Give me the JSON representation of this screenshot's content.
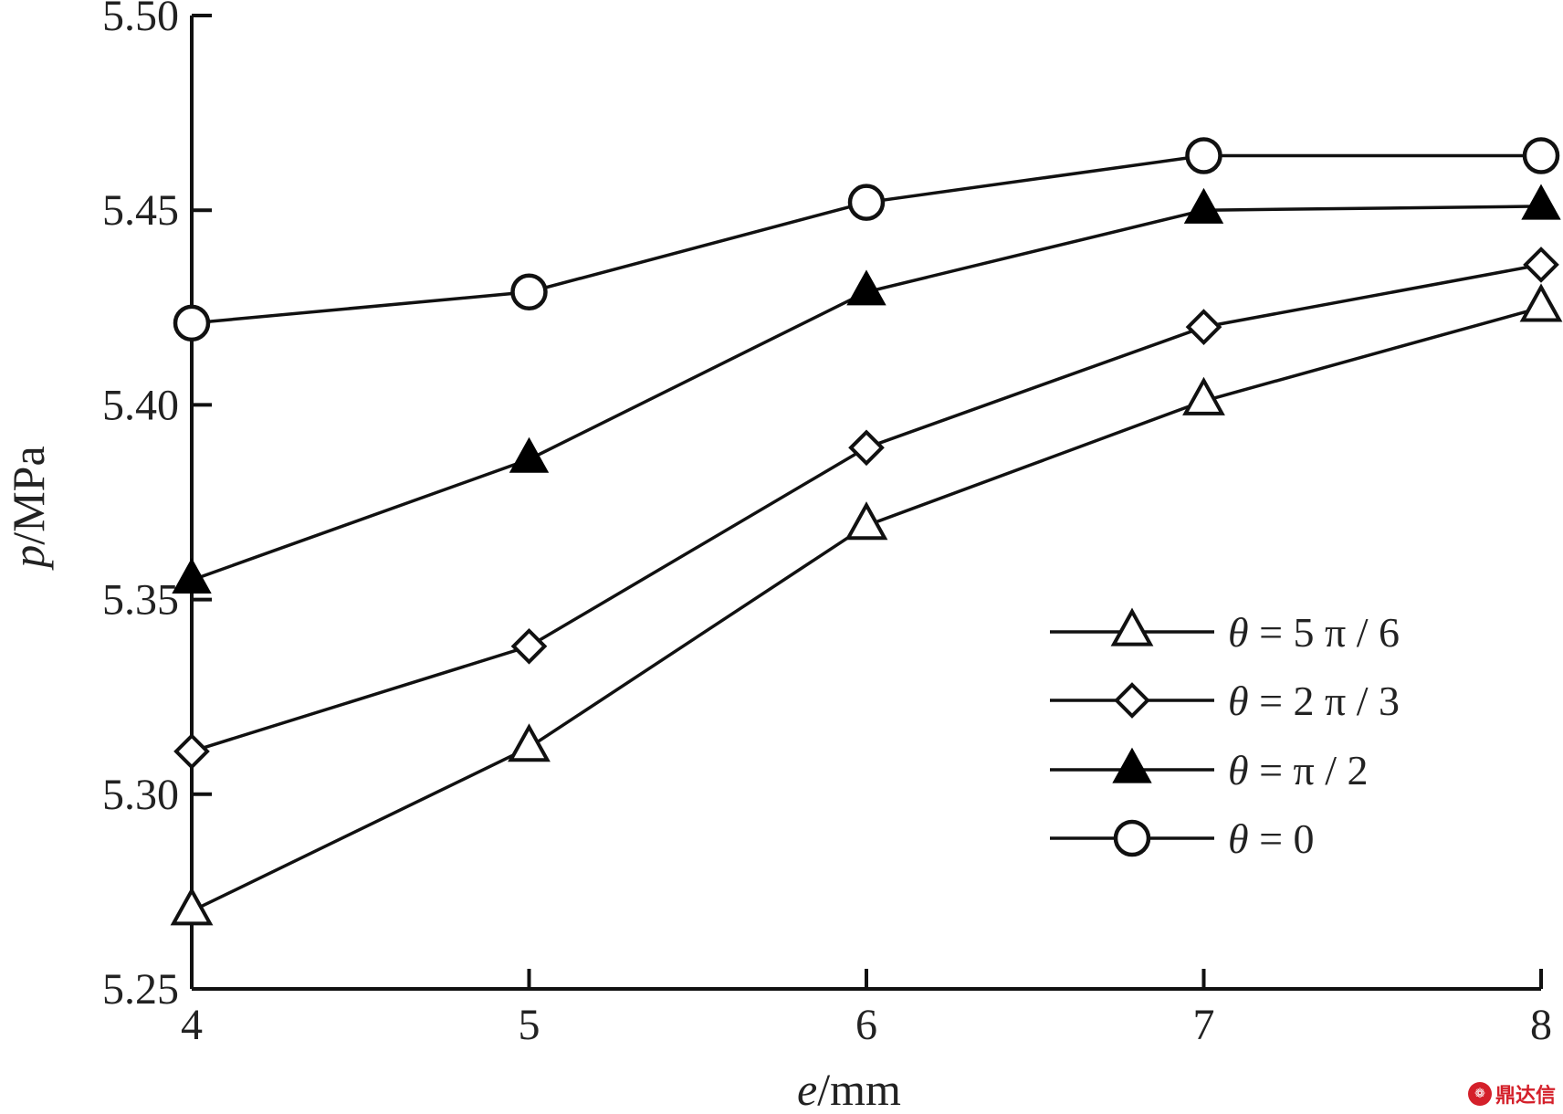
{
  "chart_data": {
    "type": "line",
    "title": "",
    "xlabel": {
      "var": "e",
      "unit": "mm"
    },
    "ylabel": {
      "var": "p",
      "unit": "MPa"
    },
    "x": [
      4,
      5,
      6,
      7,
      8
    ],
    "xlim": [
      4,
      8
    ],
    "ylim": [
      5.25,
      5.5
    ],
    "x_ticks": [
      "4",
      "5",
      "6",
      "7",
      "8"
    ],
    "y_ticks": [
      "5.25",
      "5.30",
      "5.35",
      "5.40",
      "5.45",
      "5.50"
    ],
    "y_tick_values": [
      5.25,
      5.3,
      5.35,
      5.4,
      5.45,
      5.5
    ],
    "grid": false,
    "legend_position": "lower-right",
    "series": [
      {
        "name": "θ = 5π / 6",
        "label_var": "θ",
        "label_rest": " = 5 π / 6",
        "marker": "triangle-open",
        "values": [
          5.27,
          5.312,
          5.369,
          5.401,
          5.425
        ]
      },
      {
        "name": "θ = 2π / 3",
        "label_var": "θ",
        "label_rest": " = 2 π / 3",
        "marker": "diamond-open",
        "values": [
          5.311,
          5.338,
          5.389,
          5.42,
          5.436
        ]
      },
      {
        "name": "θ = π / 2",
        "label_var": "θ",
        "label_rest": " =  π / 2",
        "marker": "triangle-filled",
        "values": [
          5.355,
          5.386,
          5.429,
          5.45,
          5.451
        ]
      },
      {
        "name": "θ = 0",
        "label_var": "θ",
        "label_rest": " = 0",
        "marker": "circle-open",
        "values": [
          5.421,
          5.429,
          5.452,
          5.464,
          5.464
        ]
      }
    ]
  },
  "watermark": {
    "text": "鼎达信",
    "logo": "❁"
  }
}
